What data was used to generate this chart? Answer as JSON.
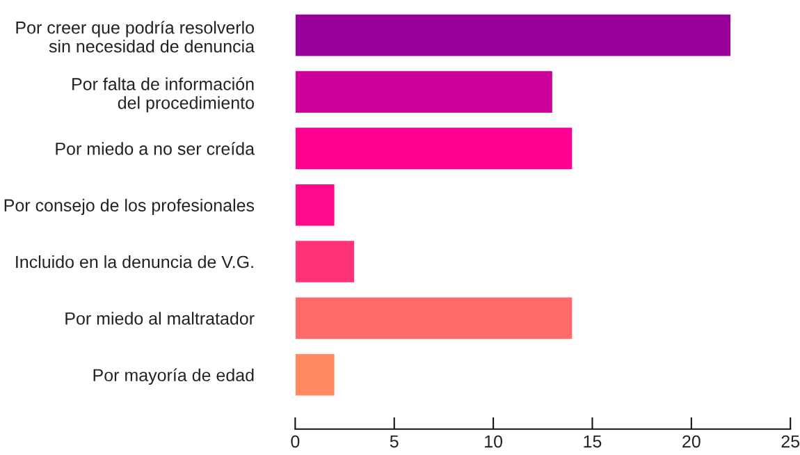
{
  "chart_data": {
    "type": "bar",
    "orientation": "horizontal",
    "categories": [
      "Por creer que podría resolverlo\nsin necesidad de denuncia",
      "Por falta de información\ndel procedimiento",
      "Por miedo a no ser creída",
      "Por consejo de los profesionales",
      "Incluido en la denuncia de V.G.",
      "Por miedo al maltratador",
      "Por mayoría de edad"
    ],
    "values": [
      22,
      13,
      14,
      2,
      3,
      14,
      2
    ],
    "colors": [
      "#990099",
      "#cc0099",
      "#ff0090",
      "#ff0a8a",
      "#ff3378",
      "#ff6b6b",
      "#ff8a60"
    ],
    "xlim": [
      0,
      25
    ],
    "xticks": [
      0,
      5,
      10,
      15,
      20,
      25
    ],
    "grid": false,
    "legend": false
  }
}
